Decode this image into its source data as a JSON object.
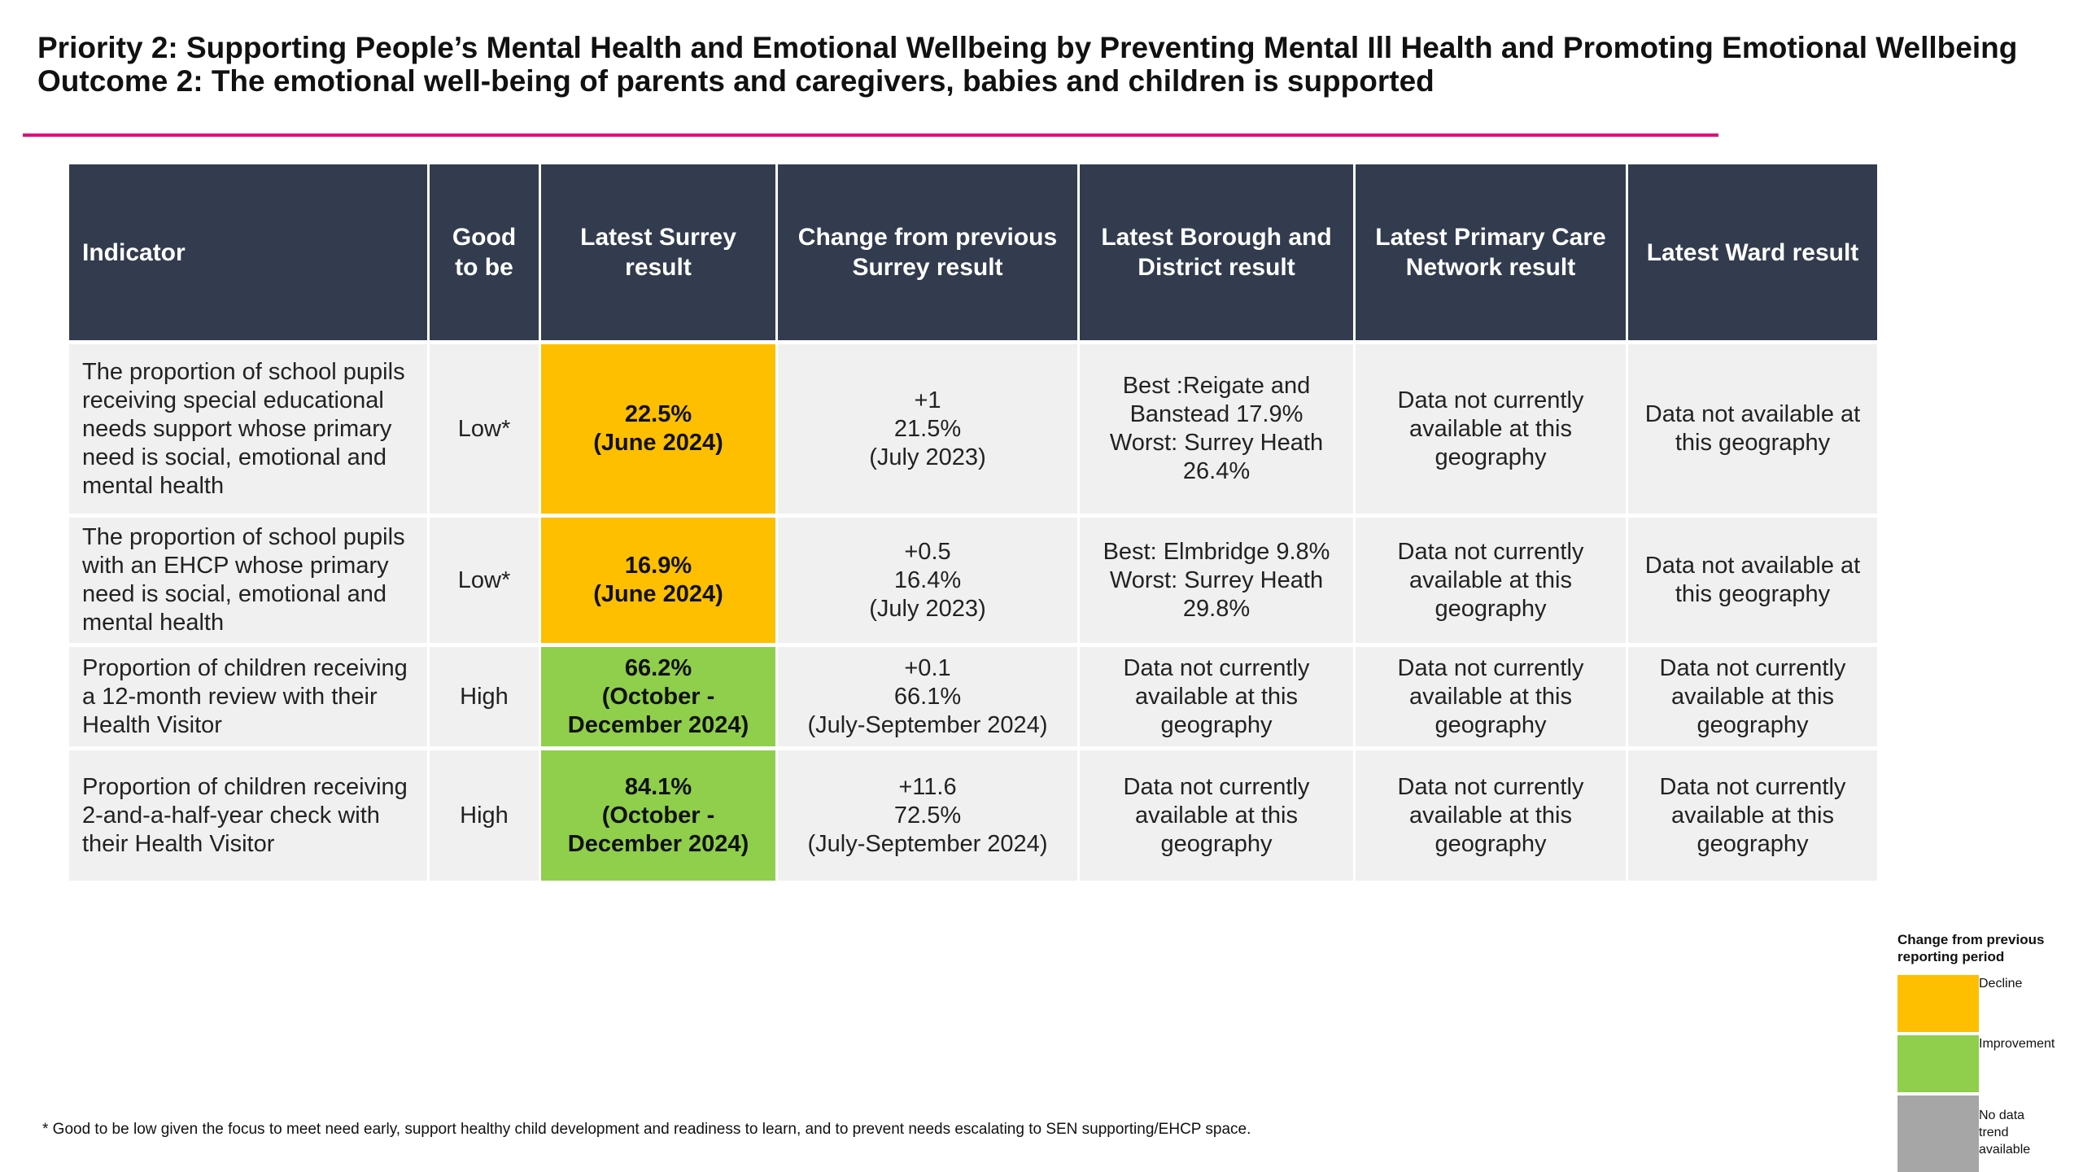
{
  "header": {
    "priority": "Priority 2: Supporting People’s Mental Health and Emotional Wellbeing by Preventing Mental Ill Health and Promoting Emotional Wellbeing",
    "outcome": "Outcome 2: The emotional well-being of parents and caregivers, babies and children is supported"
  },
  "colors": {
    "accent_rule": "#e4007c",
    "header_bg": "#323c4e",
    "decline": "#fdbf00",
    "improvement": "#8fcf4b",
    "no_trend": "#a6a6a6"
  },
  "table": {
    "columns": {
      "indicator": "Indicator",
      "good_to_be": "Good to be",
      "latest_surrey": "Latest Surrey result",
      "change": "Change from previous Surrey result",
      "borough": "Latest Borough and District result",
      "pcn": "Latest Primary Care Network result",
      "ward": "Latest Ward result"
    },
    "rows": [
      {
        "indicator": "The proportion of school pupils receiving special educational needs support whose primary need is social, emotional and mental health",
        "good_to_be": "Low*",
        "latest_value": "22.5%",
        "latest_period": "(June 2024)",
        "trend": "decline",
        "change_value": "+1",
        "change_prev": "21.5%",
        "change_period": "(July 2023)",
        "borough_line1": "Best :Reigate and Banstead 17.9%",
        "borough_line2": "Worst: Surrey Heath 26.4%",
        "pcn": "Data not currently available at this geography",
        "ward": "Data not available at this geography"
      },
      {
        "indicator": "The proportion of school pupils with an EHCP whose primary need is social, emotional and mental health",
        "good_to_be": "Low*",
        "latest_value": "16.9%",
        "latest_period": "(June 2024)",
        "trend": "decline",
        "change_value": "+0.5",
        "change_prev": "16.4%",
        "change_period": "(July 2023)",
        "borough_line1": "Best: Elmbridge 9.8%",
        "borough_line2": "Worst: Surrey Heath 29.8%",
        "pcn": "Data not currently available at this geography",
        "ward": "Data not available at this geography"
      },
      {
        "indicator": "Proportion of children receiving a 12-month review with their Health Visitor",
        "good_to_be": "High",
        "latest_value": "66.2%",
        "latest_period": "(October - December 2024)",
        "trend": "improvement",
        "change_value": "+0.1",
        "change_prev": "66.1%",
        "change_period": "(July-September 2024)",
        "borough": "Data not currently available at this geography",
        "pcn": "Data not currently available at this geography",
        "ward": "Data not currently available at this geography"
      },
      {
        "indicator": "Proportion of children receiving 2-and-a-half-year check with their Health Visitor",
        "good_to_be": "High",
        "latest_value": "84.1%",
        "latest_period": "(October - December 2024)",
        "trend": "improvement",
        "change_value": "+11.6",
        "change_prev": "72.5%",
        "change_period": "(July-September 2024)",
        "borough": "Data not currently available at this geography",
        "pcn": "Data not currently available at this geography",
        "ward": "Data not currently available at this geography"
      }
    ]
  },
  "legend": {
    "title": "Change from previous reporting period",
    "items": [
      {
        "label": "Decline"
      },
      {
        "label": "Improvement"
      },
      {
        "label": "No data trend available"
      }
    ]
  },
  "footnote": "* Good to be low given the focus to meet need early, support healthy child development and readiness to learn, and to prevent needs escalating to SEN supporting/EHCP space."
}
